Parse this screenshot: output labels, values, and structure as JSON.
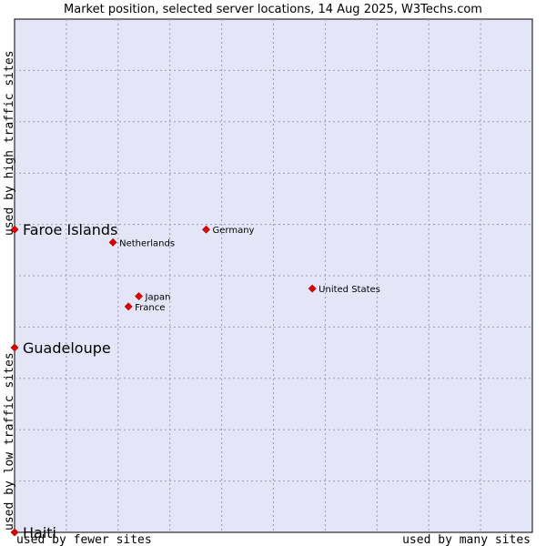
{
  "chart_data": {
    "type": "scatter",
    "title": "Market position, selected server locations, 14 Aug 2025, W3Techs.com",
    "xlabel_low": "used by fewer sites",
    "xlabel_high": "used by many sites",
    "ylabel_low": "used by low traffic sites",
    "ylabel_high": "used by high traffic sites",
    "xlim": [
      0,
      100
    ],
    "ylim": [
      0,
      100
    ],
    "grid": true,
    "colors": {
      "plot_bg": "#e4e6f8",
      "grid": "#9a9aaa",
      "marker": "#e00000",
      "marker_stroke": "#a00000"
    },
    "points": [
      {
        "name": "Faroe Islands",
        "x": 0,
        "y": 59,
        "highlight": true
      },
      {
        "name": "Guadeloupe",
        "x": 0,
        "y": 36,
        "highlight": true
      },
      {
        "name": "Haiti",
        "x": 0,
        "y": 0,
        "highlight": true
      },
      {
        "name": "Germany",
        "x": 37,
        "y": 59,
        "highlight": false
      },
      {
        "name": "Netherlands",
        "x": 19,
        "y": 56.5,
        "highlight": false
      },
      {
        "name": "United States",
        "x": 57.5,
        "y": 47.5,
        "highlight": false
      },
      {
        "name": "Japan",
        "x": 24,
        "y": 46,
        "highlight": false
      },
      {
        "name": "France",
        "x": 22,
        "y": 44,
        "highlight": false
      }
    ]
  }
}
